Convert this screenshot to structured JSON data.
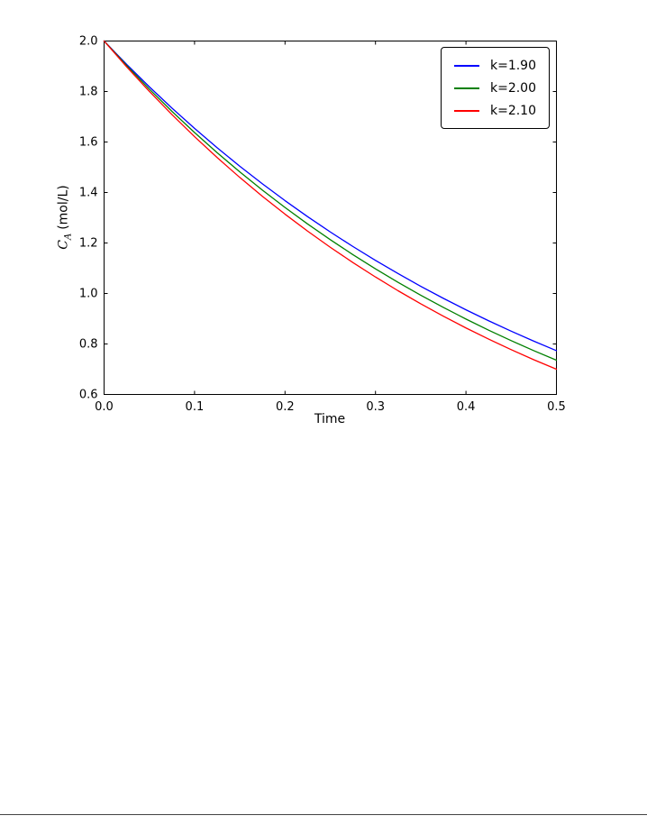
{
  "chart_data": {
    "type": "line",
    "title": "",
    "xlabel": "Time",
    "ylabel": {
      "symbol": "C",
      "subscript": "A",
      "unit": "(mol/L)"
    },
    "xlim": [
      0.0,
      0.5
    ],
    "ylim": [
      0.6,
      2.0
    ],
    "grid": false,
    "legend_position": "upper right",
    "xticks": [
      "0.0",
      "0.1",
      "0.2",
      "0.3",
      "0.4",
      "0.5"
    ],
    "yticks": [
      "0.6",
      "0.8",
      "1.0",
      "1.2",
      "1.4",
      "1.6",
      "1.8",
      "2.0"
    ],
    "x": [
      0,
      0.025,
      0.05,
      0.075,
      0.1,
      0.125,
      0.15,
      0.175,
      0.2,
      0.225,
      0.25,
      0.275,
      0.3,
      0.325,
      0.35,
      0.375,
      0.4,
      0.425,
      0.45,
      0.475,
      0.5
    ],
    "series": [
      {
        "name": "k=1.90",
        "k": 1.9,
        "color": "#0000ff",
        "values": [
          2.0,
          1.9072,
          1.8187,
          1.7344,
          1.6539,
          1.5772,
          1.504,
          1.4343,
          1.3677,
          1.3043,
          1.2438,
          1.1861,
          1.1311,
          1.0786,
          1.0285,
          0.9808,
          0.9353,
          0.8919,
          0.8506,
          0.8111,
          0.7735
        ]
      },
      {
        "name": "k=2.00",
        "k": 2.0,
        "color": "#008000",
        "values": [
          2.0,
          1.9025,
          1.8097,
          1.7214,
          1.6375,
          1.5576,
          1.4816,
          1.4094,
          1.3406,
          1.2753,
          1.2131,
          1.1539,
          1.0976,
          1.0441,
          0.9932,
          0.9447,
          0.8987,
          0.8548,
          0.8131,
          0.7735,
          0.7358
        ]
      },
      {
        "name": "k=2.10",
        "k": 2.1,
        "color": "#ff0000",
        "values": [
          2.0,
          1.8977,
          1.8007,
          1.7086,
          1.6212,
          1.5383,
          1.4596,
          1.3849,
          1.3141,
          1.2469,
          1.1831,
          1.1226,
          1.0652,
          1.0107,
          0.959,
          0.91,
          0.8634,
          0.8193,
          0.7774,
          0.7376,
          0.6999
        ]
      }
    ]
  }
}
